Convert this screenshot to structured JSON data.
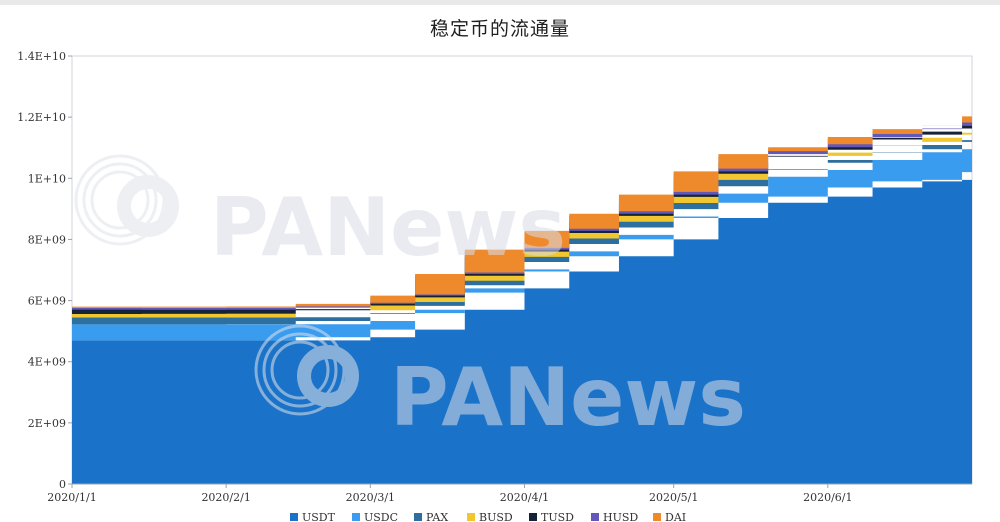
{
  "chart_data": {
    "type": "area",
    "title": "稳定币的流通量",
    "watermark": "PANews",
    "ylim": [
      0,
      14000000000
    ],
    "y_ticks": [
      {
        "value": 0,
        "label": "0"
      },
      {
        "value": 2000000000,
        "label": "2E+09"
      },
      {
        "value": 4000000000,
        "label": "4E+09"
      },
      {
        "value": 6000000000,
        "label": "6E+09"
      },
      {
        "value": 8000000000,
        "label": "8E+09"
      },
      {
        "value": 10000000000,
        "label": "1E+10"
      },
      {
        "value": 12000000000,
        "label": "1.2E+10"
      },
      {
        "value": 14000000000,
        "label": "1.4E+10"
      }
    ],
    "xlim": [
      "2020-01-01",
      "2020-06-30"
    ],
    "x_ticks": [
      "2020/1/1",
      "2020/2/1",
      "2020/3/1",
      "2020/4/1",
      "2020/5/1",
      "2020/6/1"
    ],
    "x": [
      "2020-01-01",
      "2020-01-15",
      "2020-02-01",
      "2020-02-15",
      "2020-03-01",
      "2020-03-10",
      "2020-03-20",
      "2020-04-01",
      "2020-04-10",
      "2020-04-20",
      "2020-05-01",
      "2020-05-10",
      "2020-05-20",
      "2020-06-01",
      "2020-06-10",
      "2020-06-20",
      "2020-06-28",
      "2020-06-30"
    ],
    "series": [
      {
        "name": "USDT",
        "color": "#1a73c8",
        "values": [
          4700000000,
          4700000000,
          4700000000,
          4700000000,
          4800000000,
          5050000000,
          5700000000,
          6400000000,
          6950000000,
          7450000000,
          8000000000,
          8700000000,
          9200000000,
          9400000000,
          9700000000,
          9900000000,
          9950000000,
          10200000000
        ]
      },
      {
        "name": "USDC",
        "color": "#3a9cef",
        "values": [
          520000000,
          520000000,
          520000000,
          525000000,
          530000000,
          540000000,
          560000000,
          620000000,
          660000000,
          700000000,
          750000000,
          800000000,
          850000000,
          870000000,
          900000000,
          950000000,
          1000000000,
          1050000000
        ]
      },
      {
        "name": "PAX",
        "color": "#2d6f9e",
        "values": [
          230000000,
          230000000,
          230000000,
          230000000,
          235000000,
          235000000,
          240000000,
          240000000,
          240000000,
          240000000,
          240000000,
          240000000,
          240000000,
          240000000,
          240000000,
          240000000,
          240000000,
          240000000
        ]
      },
      {
        "name": "BUSD",
        "color": "#f2c62e",
        "values": [
          110000000,
          110000000,
          115000000,
          115000000,
          120000000,
          130000000,
          150000000,
          170000000,
          180000000,
          190000000,
          200000000,
          210000000,
          220000000,
          225000000,
          230000000,
          235000000,
          240000000,
          245000000
        ]
      },
      {
        "name": "TUSD",
        "color": "#152238",
        "values": [
          150000000,
          150000000,
          150000000,
          150000000,
          150000000,
          150000000,
          160000000,
          170000000,
          180000000,
          190000000,
          200000000,
          200000000,
          200000000,
          200000000,
          200000000,
          200000000,
          200000000,
          200000000
        ]
      },
      {
        "name": "HUSD",
        "color": "#6258b9",
        "values": [
          50000000,
          50000000,
          50000000,
          50000000,
          55000000,
          55000000,
          60000000,
          65000000,
          70000000,
          70000000,
          75000000,
          75000000,
          80000000,
          80000000,
          80000000,
          85000000,
          85000000,
          90000000
        ]
      },
      {
        "name": "DAI",
        "color": "#ef8a2c",
        "values": [
          40000000,
          40000000,
          40000000,
          40000000,
          40000000,
          40000000,
          50000000,
          60000000,
          70000000,
          80000000,
          90000000,
          90000000,
          100000000,
          100000000,
          100000000,
          110000000,
          110000000,
          120000000
        ]
      }
    ],
    "grid": false,
    "legend_position": "bottom"
  }
}
